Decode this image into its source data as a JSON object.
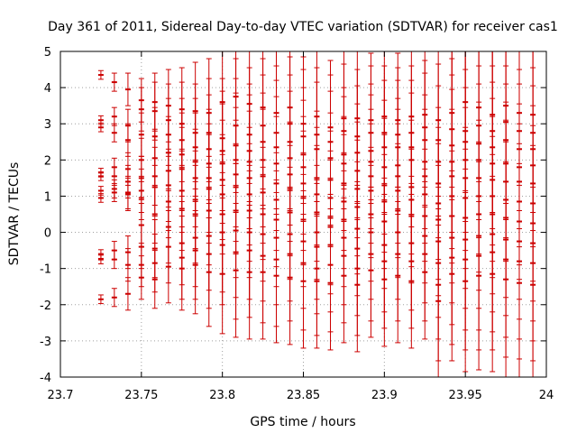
{
  "chart_data": {
    "type": "scatter",
    "title": "Day 361 of 2011, Sidereal Day-to-day VTEC variation (SDTVAR) for receiver cas1",
    "xlabel": "GPS time / hours",
    "ylabel": "SDTVAR / TECUs",
    "xlim": [
      23.7,
      24.0
    ],
    "ylim": [
      -4,
      5
    ],
    "xticks": [
      23.7,
      23.75,
      23.8,
      23.85,
      23.9,
      23.95,
      24.0
    ],
    "xtick_labels": [
      "23.7",
      "23.75",
      "23.8",
      "23.85",
      "23.9",
      "23.95",
      "24"
    ],
    "yticks": [
      -4,
      -3,
      -2,
      -1,
      0,
      1,
      2,
      3,
      4,
      5
    ],
    "ytick_labels": [
      "-4",
      "-3",
      "-2",
      "-1",
      "0",
      "1",
      "2",
      "3",
      "4",
      "5"
    ],
    "grid": true,
    "marker_color": "#cc0000",
    "series": [
      {
        "name": "cas1",
        "errorbars": true,
        "x": [
          23.725,
          23.7333,
          23.7417,
          23.75,
          23.7583,
          23.7667,
          23.775,
          23.7833,
          23.7917,
          23.8,
          23.8083,
          23.8167,
          23.825,
          23.8333,
          23.8417,
          23.85,
          23.8583,
          23.8667,
          23.875,
          23.8833,
          23.8917,
          23.9,
          23.9083,
          23.9167,
          23.925,
          23.9333,
          23.9417,
          23.95,
          23.9583,
          23.9667,
          23.975,
          23.9833,
          23.9917
        ],
        "y": [
          [
            4.35,
            3.1,
            2.9,
            1.65,
            1.55,
            1.15,
            0.95,
            -0.6,
            -0.75,
            -1.85
          ],
          [
            4.15,
            3.2,
            2.75,
            1.8,
            1.55,
            1.2,
            1.1,
            -0.5,
            -0.75,
            -1.8
          ],
          [
            3.95,
            2.95,
            2.55,
            1.75,
            1.4,
            1.1,
            1.05,
            -0.55,
            -0.9,
            -1.7
          ],
          [
            3.65,
            3.4,
            2.7,
            2.0,
            1.5,
            1.15,
            0.95,
            0.2,
            -0.4,
            -0.9,
            -1.25
          ],
          [
            3.6,
            3.35,
            2.65,
            2.05,
            1.55,
            1.25,
            0.5,
            -0.45,
            -0.85,
            -1.3
          ],
          [
            3.5,
            3.1,
            2.7,
            2.2,
            1.7,
            1.3,
            0.85,
            0.15,
            -0.4,
            -0.95
          ],
          [
            3.4,
            3.0,
            2.55,
            2.15,
            1.75,
            1.15,
            0.65,
            -0.3,
            -0.7,
            -1.0
          ],
          [
            3.35,
            2.75,
            2.35,
            1.95,
            1.5,
            0.9,
            0.5,
            -0.15,
            -0.5,
            -0.9
          ],
          [
            3.3,
            2.75,
            2.3,
            1.9,
            1.5,
            1.2,
            0.6,
            -0.1,
            -0.6,
            -1.1
          ],
          [
            3.6,
            2.6,
            2.25,
            1.9,
            1.45,
            1.05,
            0.5,
            0.0,
            -0.35,
            -1.15
          ],
          [
            3.75,
            2.95,
            2.4,
            2.0,
            1.6,
            1.25,
            0.6,
            0.05,
            -0.55,
            -1.05
          ],
          [
            3.55,
            2.7,
            2.25,
            1.95,
            1.5,
            1.05,
            0.6,
            0.0,
            -0.5,
            -1.1
          ],
          [
            3.45,
            2.95,
            2.5,
            2.0,
            1.55,
            1.1,
            0.5,
            -0.05,
            -0.65,
            -1.1
          ],
          [
            3.3,
            2.75,
            2.35,
            1.9,
            1.35,
            0.9,
            0.35,
            -0.15,
            -0.75,
            -1.2
          ],
          [
            3.45,
            3.0,
            2.5,
            2.05,
            1.6,
            1.2,
            0.55,
            -0.05,
            -0.6,
            -1.25
          ],
          [
            3.0,
            2.65,
            2.15,
            1.8,
            1.35,
            0.95,
            0.35,
            -0.25,
            -0.85,
            -1.35
          ],
          [
            3.2,
            2.7,
            2.3,
            1.5,
            1.05,
            0.55,
            0.0,
            -0.4,
            -1.0,
            -1.35
          ],
          [
            2.9,
            2.5,
            2.05,
            1.45,
            0.95,
            0.4,
            0.15,
            -0.35,
            -0.9,
            -1.4
          ],
          [
            3.15,
            2.8,
            2.15,
            1.9,
            1.35,
            0.85,
            0.35,
            -0.15,
            -0.65,
            -1.2
          ],
          [
            3.15,
            2.65,
            2.2,
            1.7,
            1.2,
            0.7,
            0.1,
            -0.45,
            -1.0,
            -1.45
          ],
          [
            3.1,
            2.75,
            2.25,
            1.95,
            1.55,
            1.15,
            0.5,
            0.0,
            -0.6,
            -1.05
          ],
          [
            3.2,
            2.75,
            2.35,
            1.8,
            1.3,
            0.85,
            0.3,
            -0.35,
            -0.8,
            -1.3
          ],
          [
            3.1,
            2.7,
            2.35,
            1.85,
            1.55,
            1.15,
            0.6,
            0.0,
            -0.6,
            -1.2
          ],
          [
            3.2,
            2.75,
            2.35,
            2.0,
            1.25,
            0.9,
            0.45,
            -0.3,
            -0.8,
            -1.35
          ],
          [
            3.25,
            2.9,
            2.55,
            1.95,
            1.55,
            1.05,
            0.45,
            -0.1,
            -0.6,
            -1.1
          ],
          [
            3.1,
            2.55,
            1.95,
            1.35,
            0.8,
            0.35,
            -0.25,
            -0.85,
            -1.45,
            -1.9
          ],
          [
            3.3,
            2.85,
            2.4,
            1.95,
            1.55,
            1.0,
            0.45,
            -0.15,
            -0.7,
            -1.15
          ],
          [
            3.6,
            2.8,
            2.5,
            2.0,
            1.5,
            0.95,
            0.4,
            -0.2,
            -0.75,
            -1.35
          ],
          [
            3.45,
            2.95,
            2.45,
            2.0,
            1.5,
            1.0,
            0.5,
            -0.1,
            -0.65,
            -1.2
          ],
          [
            3.25,
            2.8,
            2.35,
            1.9,
            1.45,
            1.0,
            0.5,
            -0.05,
            -0.55,
            -1.15
          ],
          [
            3.5,
            3.05,
            2.55,
            1.9,
            1.4,
            0.9,
            0.4,
            -0.2,
            -0.75,
            -1.3
          ],
          [
            3.3,
            2.8,
            2.3,
            1.8,
            1.4,
            0.85,
            0.3,
            -0.25,
            -0.8,
            -1.4
          ],
          [
            3.25,
            2.75,
            2.3,
            1.85,
            1.35,
            0.8,
            0.25,
            -0.3,
            -0.85,
            -1.45
          ]
        ],
        "err": [
          0.12,
          0.25,
          0.45,
          0.6,
          0.8,
          1.0,
          1.15,
          1.35,
          1.5,
          1.65,
          1.85,
          1.85,
          1.85,
          1.85,
          1.85,
          1.85,
          1.85,
          1.85,
          1.85,
          1.85,
          1.85,
          1.85,
          1.85,
          1.85,
          1.85,
          2.1,
          2.4,
          2.5,
          2.6,
          2.7,
          2.7,
          2.7,
          2.7
        ]
      }
    ]
  }
}
